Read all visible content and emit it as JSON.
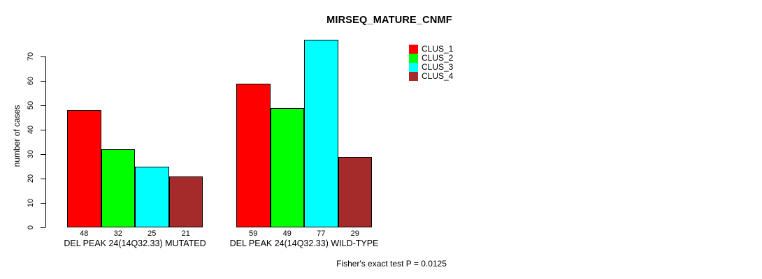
{
  "chart_data": {
    "type": "bar",
    "title": "MIRSEQ_MATURE_CNMF",
    "xlabel": "",
    "ylabel": "number of cases",
    "ylim": [
      0,
      77
    ],
    "yticks": [
      0,
      10,
      20,
      30,
      40,
      50,
      60,
      70
    ],
    "grid": false,
    "legend_position": "top-right",
    "categories": [
      "DEL PEAK 24(14Q32.33) MUTATED",
      "DEL PEAK 24(14Q32.33) WILD-TYPE"
    ],
    "series": [
      {
        "name": "CLUS_1",
        "color": "#FF0000",
        "values": [
          48,
          59
        ]
      },
      {
        "name": "CLUS_2",
        "color": "#00FF00",
        "values": [
          32,
          49
        ]
      },
      {
        "name": "CLUS_3",
        "color": "#00FFFF",
        "values": [
          25,
          77
        ]
      },
      {
        "name": "CLUS_4",
        "color": "#A52A2A",
        "values": [
          21,
          29
        ]
      }
    ],
    "bar_value_labels": [
      [
        48,
        32,
        25,
        21
      ],
      [
        59,
        49,
        77,
        29
      ]
    ],
    "annotation": "Fisher's exact test P = 0.0125",
    "axis_color": "#000000",
    "bar_border_color": "#000000"
  }
}
